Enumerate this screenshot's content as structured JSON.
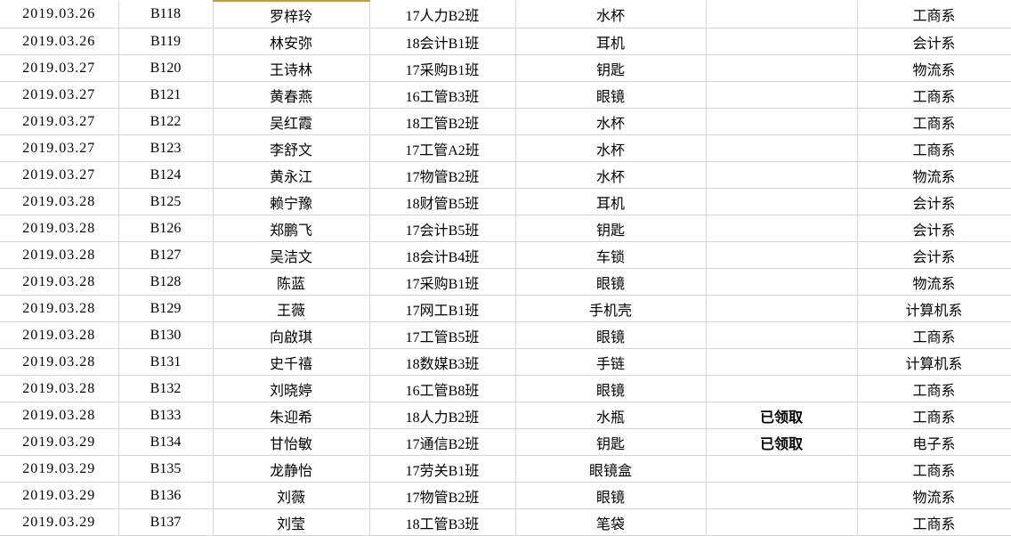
{
  "app": {
    "kind": "spreadsheet-grid",
    "colors": {
      "grid_line": "#d5d5d5",
      "status_received_text": "#fe0000",
      "highlight_border": "#c49a3f",
      "background": "#ffffff",
      "text": "#000000"
    }
  },
  "table": {
    "columns": [
      {
        "key": "date"
      },
      {
        "key": "code"
      },
      {
        "key": "name"
      },
      {
        "key": "class"
      },
      {
        "key": "item"
      },
      {
        "key": "status"
      },
      {
        "key": "department"
      }
    ],
    "status_received_label": "已领取",
    "highlight": {
      "row_index": 0,
      "column_key": "name"
    },
    "rows": [
      {
        "date": "2019.03.26",
        "code": "B118",
        "name": "罗梓玲",
        "class": "17人力B2班",
        "item": "水杯",
        "status": "",
        "department": "工商系"
      },
      {
        "date": "2019.03.26",
        "code": "B119",
        "name": "林安弥",
        "class": "18会计B1班",
        "item": "耳机",
        "status": "",
        "department": "会计系"
      },
      {
        "date": "2019.03.27",
        "code": "B120",
        "name": "王诗林",
        "class": "17采购B1班",
        "item": "钥匙",
        "status": "",
        "department": "物流系"
      },
      {
        "date": "2019.03.27",
        "code": "B121",
        "name": "黄春燕",
        "class": "16工管B3班",
        "item": "眼镜",
        "status": "",
        "department": "工商系"
      },
      {
        "date": "2019.03.27",
        "code": "B122",
        "name": "吴红霞",
        "class": "18工管B2班",
        "item": "水杯",
        "status": "",
        "department": "工商系"
      },
      {
        "date": "2019.03.27",
        "code": "B123",
        "name": "李舒文",
        "class": "17工管A2班",
        "item": "水杯",
        "status": "",
        "department": "工商系"
      },
      {
        "date": "2019.03.27",
        "code": "B124",
        "name": "黄永江",
        "class": "17物管B2班",
        "item": "水杯",
        "status": "",
        "department": "物流系"
      },
      {
        "date": "2019.03.28",
        "code": "B125",
        "name": "赖宁豫",
        "class": "18财管B5班",
        "item": "耳机",
        "status": "",
        "department": "会计系"
      },
      {
        "date": "2019.03.28",
        "code": "B126",
        "name": "郑鹏飞",
        "class": "17会计B5班",
        "item": "钥匙",
        "status": "",
        "department": "会计系"
      },
      {
        "date": "2019.03.28",
        "code": "B127",
        "name": "吴洁文",
        "class": "18会计B4班",
        "item": "车锁",
        "status": "",
        "department": "会计系"
      },
      {
        "date": "2019.03.28",
        "code": "B128",
        "name": "陈蓝",
        "class": "17采购B1班",
        "item": "眼镜",
        "status": "",
        "department": "物流系"
      },
      {
        "date": "2019.03.28",
        "code": "B129",
        "name": "王薇",
        "class": "17网工B1班",
        "item": "手机壳",
        "status": "",
        "department": "计算机系"
      },
      {
        "date": "2019.03.28",
        "code": "B130",
        "name": "向啟琪",
        "class": "17工管B5班",
        "item": "眼镜",
        "status": "",
        "department": "工商系"
      },
      {
        "date": "2019.03.28",
        "code": "B131",
        "name": "史千禧",
        "class": "18数媒B3班",
        "item": "手链",
        "status": "",
        "department": "计算机系"
      },
      {
        "date": "2019.03.28",
        "code": "B132",
        "name": "刘晓婷",
        "class": "16工管B8班",
        "item": "眼镜",
        "status": "",
        "department": "工商系"
      },
      {
        "date": "2019.03.28",
        "code": "B133",
        "name": "朱迎希",
        "class": "18人力B2班",
        "item": "水瓶",
        "status": "已领取",
        "department": "工商系"
      },
      {
        "date": "2019.03.29",
        "code": "B134",
        "name": "甘怡敏",
        "class": "17通信B2班",
        "item": "钥匙",
        "status": "已领取",
        "department": "电子系"
      },
      {
        "date": "2019.03.29",
        "code": "B135",
        "name": "龙静怡",
        "class": "17劳关B1班",
        "item": "眼镜盒",
        "status": "",
        "department": "工商系"
      },
      {
        "date": "2019.03.29",
        "code": "B136",
        "name": "刘薇",
        "class": "17物管B2班",
        "item": "眼镜",
        "status": "",
        "department": "物流系"
      },
      {
        "date": "2019.03.29",
        "code": "B137",
        "name": "刘莹",
        "class": "18工管B3班",
        "item": "笔袋",
        "status": "",
        "department": "工商系"
      }
    ]
  }
}
